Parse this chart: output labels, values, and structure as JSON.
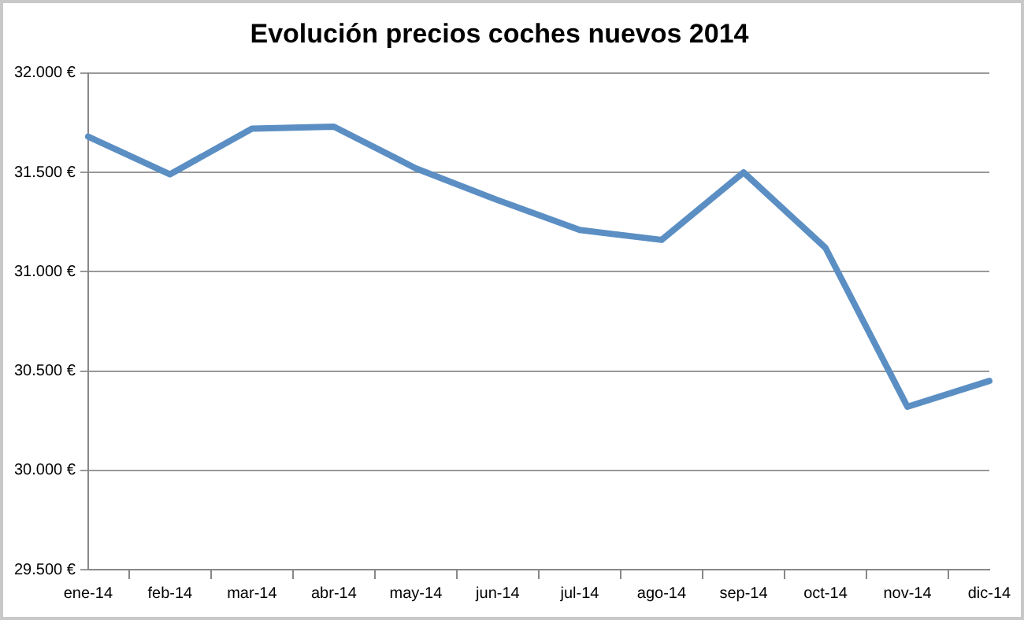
{
  "chart_data": {
    "type": "line",
    "title": "Evolución precios coches nuevos 2014",
    "categories": [
      "ene-14",
      "feb-14",
      "mar-14",
      "abr-14",
      "may-14",
      "jun-14",
      "jul-14",
      "ago-14",
      "sep-14",
      "oct-14",
      "nov-14",
      "dic-14"
    ],
    "series": [
      {
        "color": "#5b8fc4",
        "values": [
          31680,
          31490,
          31720,
          31730,
          31520,
          31360,
          31210,
          31160,
          31500,
          31120,
          30320,
          30450
        ]
      }
    ],
    "ylim": [
      29500,
      32000
    ],
    "yticks": [
      {
        "value": 29500,
        "label": "29.500 €"
      },
      {
        "value": 30000,
        "label": "30.000 €"
      },
      {
        "value": 30500,
        "label": "30.500 €"
      },
      {
        "value": 31000,
        "label": "31.000 €"
      },
      {
        "value": 31500,
        "label": "31.500 €"
      },
      {
        "value": 32000,
        "label": "32.000 €"
      }
    ],
    "grid": "y",
    "legend": false,
    "marker": "none",
    "line_style": "solid"
  }
}
